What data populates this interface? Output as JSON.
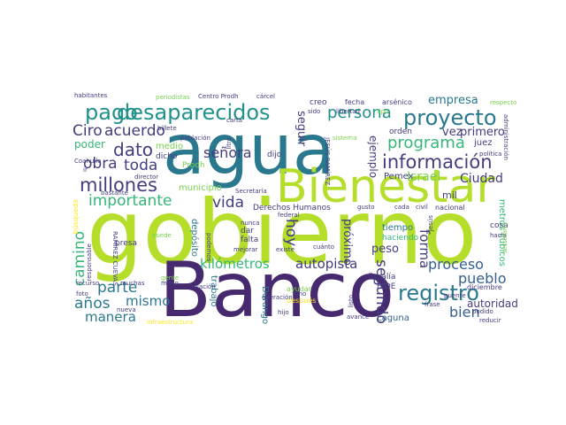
{
  "palette": {
    "dark_purple": "#46296e",
    "purple": "#433d80",
    "blue": "#355f8d",
    "teal": "#2a788e",
    "green_teal": "#21918c",
    "green": "#35b779",
    "light_green": "#7ad151",
    "lime": "#b5de2b",
    "yellow": "#fde725"
  },
  "words": [
    {
      "text": "gobierno",
      "size": "xxl",
      "color": "lime"
    },
    {
      "text": "Banco",
      "size": "xxl",
      "color": "dark_purple"
    },
    {
      "text": "agua",
      "size": "xl",
      "color": "teal"
    },
    {
      "text": "Bienestar",
      "size": "xl",
      "color": "lime"
    },
    {
      "text": "desaparecidos",
      "size": "l",
      "color": "green_teal"
    },
    {
      "text": "pago",
      "size": "l",
      "color": "green_teal"
    },
    {
      "text": "proyecto",
      "size": "l",
      "color": "teal"
    },
    {
      "text": "información",
      "size": "l",
      "color": "purple"
    },
    {
      "text": "millones",
      "size": "l",
      "color": "purple"
    },
    {
      "text": "registro",
      "size": "l",
      "color": "teal"
    },
    {
      "text": "persona",
      "size": "m",
      "color": "green_teal"
    },
    {
      "text": "programa",
      "size": "m",
      "color": "green"
    },
    {
      "text": "dato",
      "size": "m",
      "color": "purple"
    },
    {
      "text": "acuerdo",
      "size": "m",
      "color": "purple"
    },
    {
      "text": "Ciro",
      "size": "m",
      "color": "purple"
    },
    {
      "text": "obra",
      "size": "m",
      "color": "purple"
    },
    {
      "text": "toda",
      "size": "m",
      "color": "purple"
    },
    {
      "text": "señora",
      "size": "m",
      "color": "purple"
    },
    {
      "text": "importante",
      "size": "m",
      "color": "green"
    },
    {
      "text": "vida",
      "size": "m",
      "color": "purple"
    },
    {
      "text": "camino",
      "size": "m",
      "color": "green"
    },
    {
      "text": "parte",
      "size": "m",
      "color": "teal"
    },
    {
      "text": "mismo",
      "size": "m",
      "color": "teal"
    },
    {
      "text": "años",
      "size": "m",
      "color": "teal"
    },
    {
      "text": "manera",
      "size": "m",
      "color": "teal"
    },
    {
      "text": "kilómetros",
      "size": "m",
      "color": "green"
    },
    {
      "text": "autopista",
      "size": "m",
      "color": "purple"
    },
    {
      "text": "proceso",
      "size": "m",
      "color": "blue"
    },
    {
      "text": "pueblo",
      "size": "m",
      "color": "blue"
    },
    {
      "text": "bien",
      "size": "m",
      "color": "blue"
    },
    {
      "text": "segundo",
      "size": "m",
      "color": "purple"
    },
    {
      "text": "forma",
      "size": "m",
      "color": "purple"
    },
    {
      "text": "hoy",
      "size": "m",
      "color": "purple"
    },
    {
      "text": "Israel",
      "size": "s",
      "color": "light_green"
    },
    {
      "text": "Ciudad",
      "size": "s",
      "color": "purple"
    },
    {
      "text": "empresa",
      "size": "s",
      "color": "teal"
    },
    {
      "text": "primero",
      "size": "s",
      "color": "purple"
    },
    {
      "text": "vez",
      "size": "s",
      "color": "purple"
    },
    {
      "text": "ejemplo",
      "size": "s",
      "color": "purple"
    },
    {
      "text": "seguir",
      "size": "s",
      "color": "purple"
    },
    {
      "text": "próximo",
      "size": "s",
      "color": "purple"
    },
    {
      "text": "peso",
      "size": "s",
      "color": "purple"
    },
    {
      "text": "autoridad",
      "size": "s",
      "color": "purple"
    },
    {
      "text": "poder",
      "size": "s",
      "color": "green"
    },
    {
      "text": "Pemex",
      "size": "xs",
      "color": "purple"
    },
    {
      "text": "orden",
      "size": "xs",
      "color": "purple"
    },
    {
      "text": "juez",
      "size": "xs",
      "color": "purple"
    },
    {
      "text": "tiempo",
      "size": "xs",
      "color": "teal"
    },
    {
      "text": "haciendo",
      "size": "xs",
      "color": "green"
    },
    {
      "text": "mil",
      "size": "xs",
      "color": "purple"
    },
    {
      "text": "Laguna",
      "size": "xs",
      "color": "blue"
    },
    {
      "text": "Durango",
      "size": "xs",
      "color": "teal"
    },
    {
      "text": "depósito",
      "size": "xs",
      "color": "teal"
    },
    {
      "text": "trabajo",
      "size": "xs",
      "color": "teal"
    },
    {
      "text": "fiscalía",
      "size": "xs",
      "color": "purple"
    },
    {
      "text": "BIDE",
      "size": "xs",
      "color": "purple"
    },
    {
      "text": "metros cúbicos",
      "size": "xs",
      "color": "green"
    },
    {
      "text": "Derechos Humanos",
      "size": "xs",
      "color": "purple"
    },
    {
      "text": "municipio",
      "size": "xs",
      "color": "light_green"
    },
    {
      "text": "medio",
      "size": "xs",
      "color": "light_green"
    },
    {
      "text": "dicho",
      "size": "xs",
      "color": "purple"
    },
    {
      "text": "Prodh",
      "size": "xs",
      "color": "light_green"
    },
    {
      "text": "creo",
      "size": "xs",
      "color": "purple"
    },
    {
      "text": "fecha",
      "size": "xs",
      "color": "purple"
    },
    {
      "text": "arsénico",
      "size": "xs",
      "color": "purple"
    },
    {
      "text": "respecto",
      "size": "xxs",
      "color": "light_green"
    },
    {
      "text": "presa",
      "size": "xs",
      "color": "purple"
    },
    {
      "text": "falta",
      "size": "xs",
      "color": "purple"
    },
    {
      "text": "dar",
      "size": "xs",
      "color": "purple"
    },
    {
      "text": "cosa",
      "size": "xs",
      "color": "purple"
    },
    {
      "text": "hacia",
      "size": "xxs",
      "color": "purple"
    },
    {
      "text": "nacional",
      "size": "xs",
      "color": "purple"
    },
    {
      "text": "civil",
      "size": "xxs",
      "color": "purple"
    },
    {
      "text": "cada",
      "size": "xxs",
      "color": "purple"
    },
    {
      "text": "gusto",
      "size": "xxs",
      "color": "purple"
    },
    {
      "text": "federal",
      "size": "xxs",
      "color": "purple"
    },
    {
      "text": "existe",
      "size": "xxs",
      "color": "purple"
    },
    {
      "text": "cuánto",
      "size": "xxs",
      "color": "purple"
    },
    {
      "text": "nunca",
      "size": "xxs",
      "color": "purple"
    },
    {
      "text": "mano",
      "size": "xxs",
      "color": "purple"
    },
    {
      "text": "muchas",
      "size": "xxs",
      "color": "purple"
    },
    {
      "text": "foto",
      "size": "xxs",
      "color": "purple"
    },
    {
      "text": "gente",
      "size": "xxs",
      "color": "light_green"
    },
    {
      "text": "recurso",
      "size": "xxs",
      "color": "purple"
    },
    {
      "text": "relación",
      "size": "xxs",
      "color": "purple"
    },
    {
      "text": "ayudar",
      "size": "xxs",
      "color": "light_green"
    },
    {
      "text": "sino",
      "size": "xxs",
      "color": "purple"
    },
    {
      "text": "después",
      "size": "xxs",
      "color": "yellow"
    },
    {
      "text": "operación",
      "size": "xxs",
      "color": "purple"
    },
    {
      "text": "hijo",
      "size": "xxs",
      "color": "purple"
    },
    {
      "text": "avance",
      "size": "xxs",
      "color": "purple"
    },
    {
      "text": "frase",
      "size": "xxs",
      "color": "purple"
    },
    {
      "text": "podido",
      "size": "xxs",
      "color": "purple"
    },
    {
      "text": "reducir",
      "size": "xxs",
      "color": "purple"
    },
    {
      "text": "diciembre",
      "size": "xxs",
      "color": "purple"
    },
    {
      "text": "nueva",
      "size": "xxs",
      "color": "purple"
    },
    {
      "text": "infraestructura",
      "size": "xxs",
      "color": "yellow"
    },
    {
      "text": "director",
      "size": "xxs",
      "color": "purple"
    },
    {
      "text": "bastante",
      "size": "xxs",
      "color": "purple"
    },
    {
      "text": "billete",
      "size": "xxs",
      "color": "purple"
    },
    {
      "text": "población",
      "size": "xxs",
      "color": "purple"
    },
    {
      "text": "Centro Prodh",
      "size": "xxs",
      "color": "purple"
    },
    {
      "text": "carta",
      "size": "xxs",
      "color": "purple"
    },
    {
      "text": "sido",
      "size": "xxs",
      "color": "purple"
    },
    {
      "text": "libertad",
      "size": "xxs",
      "color": "purple"
    },
    {
      "text": "tipo",
      "size": "xxs",
      "color": "light_green"
    },
    {
      "text": "política",
      "size": "xxs",
      "color": "purple"
    },
    {
      "text": "administración",
      "size": "xxs",
      "color": "purple"
    },
    {
      "text": "habitantes",
      "size": "xxs",
      "color": "purple"
    },
    {
      "text": "periodistas",
      "size": "xxs",
      "color": "light_green"
    },
    {
      "text": "Coahuila",
      "size": "xxs",
      "color": "purple"
    },
    {
      "text": "búsqueda",
      "size": "xxs",
      "color": "yellow"
    },
    {
      "text": "responsable",
      "size": "xxs",
      "color": "purple"
    },
    {
      "text": "RAMÍREZ CUEVAS",
      "size": "xxs",
      "color": "purple"
    },
    {
      "text": "Secretaría",
      "size": "xxs",
      "color": "purple"
    },
    {
      "text": "podemos",
      "size": "xxs",
      "color": "purple"
    },
    {
      "text": "JESÚS RAMÍREZ",
      "size": "xxs",
      "color": "purple"
    },
    {
      "text": "dijo",
      "size": "xs",
      "color": "purple"
    },
    {
      "text": "cárcel",
      "size": "xxs",
      "color": "purple"
    },
    {
      "text": "puede",
      "size": "xxs",
      "color": "light_green"
    },
    {
      "text": "mejorar",
      "size": "xxs",
      "color": "purple"
    },
    {
      "text": "listo",
      "size": "xxs",
      "color": "purple"
    },
    {
      "text": "Jesús",
      "size": "xxs",
      "color": "purple"
    },
    {
      "text": "ir",
      "size": "xxs",
      "color": "purple"
    },
    {
      "text": "sistema",
      "size": "xxs",
      "color": "light_green"
    },
    {
      "text": "puente",
      "size": "xxs",
      "color": "purple"
    },
    {
      "text": "litro",
      "size": "xxs",
      "color": "purple"
    },
    {
      "text": "secretaria",
      "size": "xxs",
      "color": "light_green"
    }
  ]
}
